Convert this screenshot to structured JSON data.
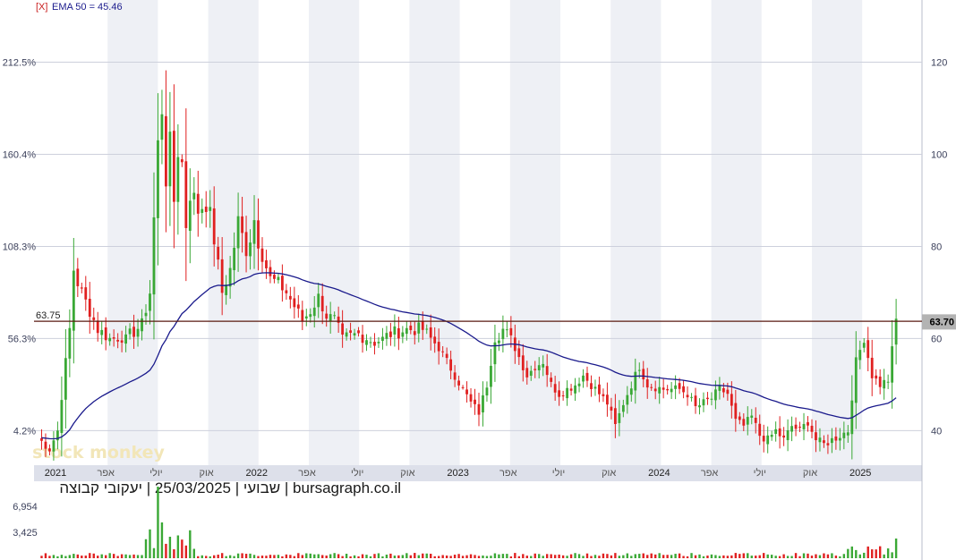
{
  "legend": {
    "close_marker": "[X]",
    "ema_label": "EMA 50 = 45.46",
    "ema_color": "#1a1a8c"
  },
  "footer": {
    "caption": "שבועי | 25/03/2025 | יעקובי קבוצה | bursagraph.co.il"
  },
  "watermark": "stock monkey",
  "colors": {
    "up": "#3aa835",
    "down": "#e02020",
    "ema": "#1a1a8c",
    "grid": "#cdd0dc",
    "band": "#eef0f5",
    "axis_band": "#dde0ea",
    "price_line": "#5a1a10"
  },
  "chart_data": {
    "type": "candlestick",
    "left_axis": {
      "ticks": [
        {
          "value": 40,
          "label": "4.2%"
        },
        {
          "value": 60,
          "label": "56.3%"
        },
        {
          "value": 80,
          "label": "108.3%"
        },
        {
          "value": 100,
          "label": "160.4%"
        },
        {
          "value": 120,
          "label": "212.5%"
        }
      ],
      "reference_label": "63.75",
      "reference_value": 63.75
    },
    "right_axis": {
      "ticks": [
        40,
        60,
        80,
        100,
        120
      ],
      "last_price_label": "63.70",
      "last_price": 63.7
    },
    "y_range": [
      32.5,
      133.5
    ],
    "x_labels": [
      "2021",
      "אפר",
      "יולי",
      "אוק",
      "2022",
      "אפר",
      "יולי",
      "אוק",
      "2023",
      "אפר",
      "יולי",
      "אוק",
      "2024",
      "אפר",
      "יולי",
      "אוק",
      "2025"
    ],
    "weeks": 220,
    "anchors": [
      [
        0,
        38.5
      ],
      [
        3,
        36
      ],
      [
        5,
        40
      ],
      [
        7,
        55
      ],
      [
        8,
        62
      ],
      [
        9,
        75
      ],
      [
        10,
        72
      ],
      [
        12,
        68
      ],
      [
        15,
        62
      ],
      [
        18,
        60
      ],
      [
        22,
        60
      ],
      [
        26,
        63
      ],
      [
        28,
        70
      ],
      [
        30,
        102
      ],
      [
        31,
        110
      ],
      [
        32,
        95
      ],
      [
        33,
        102
      ],
      [
        34,
        90
      ],
      [
        35,
        101
      ],
      [
        36,
        98
      ],
      [
        37,
        85
      ],
      [
        38,
        92
      ],
      [
        40,
        88
      ],
      [
        42,
        90
      ],
      [
        44,
        82
      ],
      [
        46,
        70
      ],
      [
        48,
        75
      ],
      [
        50,
        85
      ],
      [
        52,
        79
      ],
      [
        54,
        86
      ],
      [
        56,
        78
      ],
      [
        58,
        73
      ],
      [
        60,
        72
      ],
      [
        62,
        70
      ],
      [
        64,
        67
      ],
      [
        66,
        64
      ],
      [
        68,
        66
      ],
      [
        70,
        69
      ],
      [
        72,
        65
      ],
      [
        74,
        64
      ],
      [
        76,
        60
      ],
      [
        80,
        61
      ],
      [
        84,
        59
      ],
      [
        88,
        61
      ],
      [
        92,
        62
      ],
      [
        96,
        62
      ],
      [
        100,
        58
      ],
      [
        104,
        52
      ],
      [
        108,
        46
      ],
      [
        110,
        44
      ],
      [
        112,
        50
      ],
      [
        114,
        60
      ],
      [
        116,
        62
      ],
      [
        118,
        60
      ],
      [
        120,
        56
      ],
      [
        122,
        52
      ],
      [
        124,
        54
      ],
      [
        126,
        55
      ],
      [
        128,
        50
      ],
      [
        130,
        48
      ],
      [
        134,
        50
      ],
      [
        136,
        52
      ],
      [
        140,
        48
      ],
      [
        142,
        46
      ],
      [
        144,
        41
      ],
      [
        146,
        46
      ],
      [
        148,
        50
      ],
      [
        150,
        54
      ],
      [
        152,
        50
      ],
      [
        156,
        49
      ],
      [
        160,
        49
      ],
      [
        162,
        48
      ],
      [
        164,
        45
      ],
      [
        166,
        46
      ],
      [
        168,
        47
      ],
      [
        170,
        49
      ],
      [
        172,
        48
      ],
      [
        174,
        42
      ],
      [
        176,
        41
      ],
      [
        178,
        43
      ],
      [
        180,
        39
      ],
      [
        182,
        38
      ],
      [
        184,
        40
      ],
      [
        186,
        38
      ],
      [
        188,
        41
      ],
      [
        190,
        40
      ],
      [
        192,
        42
      ],
      [
        194,
        38
      ],
      [
        196,
        37
      ],
      [
        198,
        38
      ],
      [
        200,
        39
      ],
      [
        202,
        40
      ],
      [
        204,
        55
      ],
      [
        206,
        60
      ],
      [
        208,
        52
      ],
      [
        210,
        50
      ],
      [
        212,
        51
      ],
      [
        214,
        64
      ]
    ],
    "ema_period": 50,
    "ema_last": 45.46,
    "volume_axis": {
      "ticks": [
        {
          "value": 6954,
          "label": "6,954"
        },
        {
          "value": 3425,
          "label": "3,425"
        }
      ]
    }
  }
}
